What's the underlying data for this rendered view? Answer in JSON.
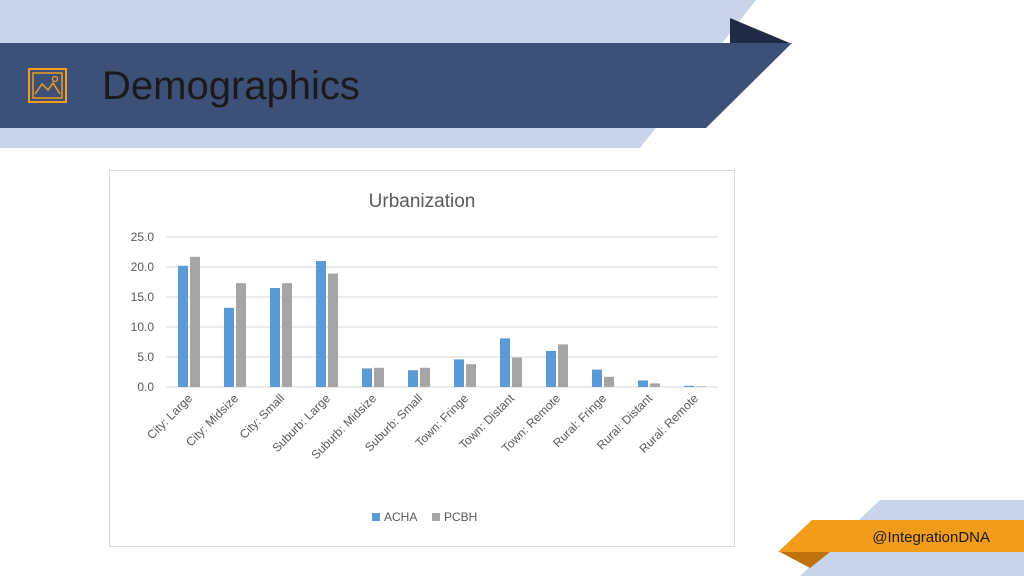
{
  "slide": {
    "title": "Demographics",
    "icon": "picture-frame-icon",
    "handle": "@IntegrationDNA"
  },
  "colors": {
    "banner": "#3d5078",
    "banner_light": "#c7d4e9",
    "banner_dark": "#1f2b45",
    "orange": "#f29c1c",
    "series_acha": "#5b9bd5",
    "series_pcbh": "#a5a5a5",
    "grid": "#d9d9d9",
    "axis_text": "#595959",
    "title_text": "#595959"
  },
  "chart_data": {
    "type": "bar",
    "title": "Urbanization",
    "xlabel": "",
    "ylabel": "",
    "ylim": [
      0,
      25
    ],
    "yticks": [
      "0.0",
      "5.0",
      "10.0",
      "15.0",
      "20.0",
      "25.0"
    ],
    "grid": true,
    "legend": "bottom",
    "categories": [
      "City: Large",
      "City: Midsize",
      "City: Small",
      "Suburb: Large",
      "Suburb: Midsize",
      "Suburb: Small",
      "Town: Fringe",
      "Town: Distant",
      "Town: Remote",
      "Rural: Fringe",
      "Rural: Distant",
      "Rural: Remote"
    ],
    "series": [
      {
        "name": "ACHA",
        "values": [
          20.2,
          13.2,
          16.5,
          21.0,
          3.1,
          2.8,
          4.6,
          8.1,
          6.0,
          2.9,
          1.1,
          0.2
        ]
      },
      {
        "name": "PCBH",
        "values": [
          21.7,
          17.3,
          17.3,
          18.9,
          3.2,
          3.2,
          3.8,
          4.9,
          7.1,
          1.7,
          0.6,
          0.1
        ]
      }
    ]
  }
}
